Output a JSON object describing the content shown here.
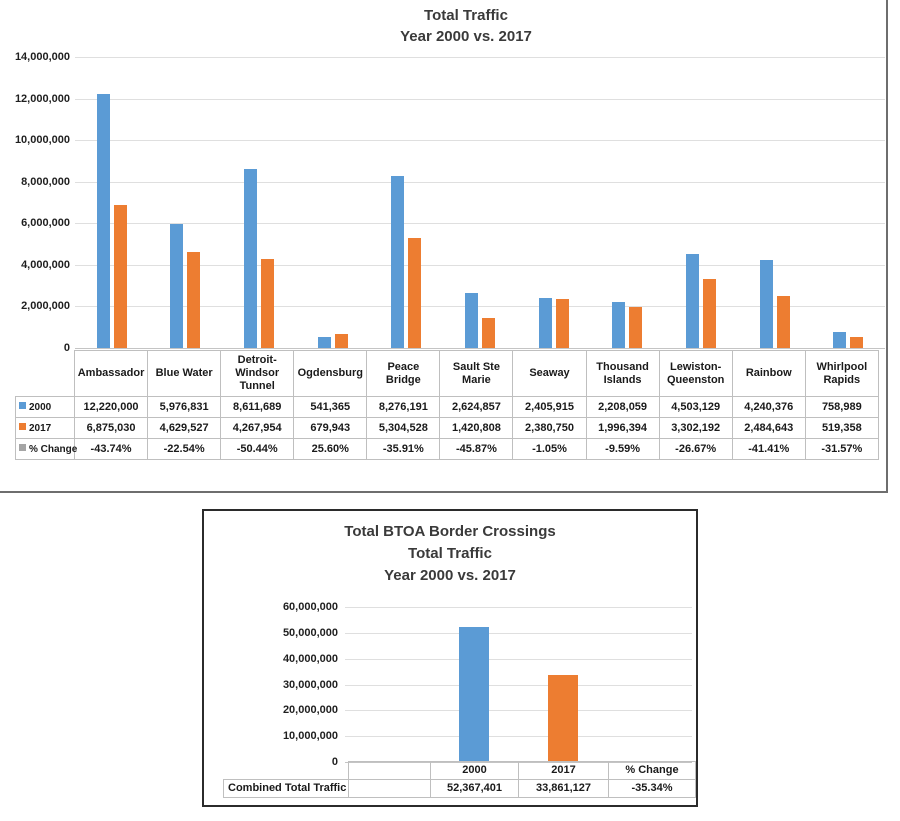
{
  "page": {
    "background": "#ffffff"
  },
  "chart_data": [
    {
      "type": "bar",
      "title": [
        "Total Traffic",
        "Year 2000 vs. 2017"
      ],
      "categories": [
        "Ambassador",
        "Blue Water",
        "Detroit-Windsor Tunnel",
        "Ogdensburg",
        "Peace Bridge",
        "Sault Ste Marie",
        "Seaway",
        "Thousand Islands",
        "Lewiston-Queenston",
        "Rainbow",
        "Whirlpool Rapids"
      ],
      "series": [
        {
          "name": "2000",
          "color": "#5B9BD5",
          "in_plot": true,
          "values": [
            12220000,
            5976831,
            8611689,
            541365,
            8276191,
            2624857,
            2405915,
            2208059,
            4503129,
            4240376,
            758989
          ],
          "labels": [
            "12,220,000",
            "5,976,831",
            "8,611,689",
            "541,365",
            "8,276,191",
            "2,624,857",
            "2,405,915",
            "2,208,059",
            "4,503,129",
            "4,240,376",
            "758,989"
          ]
        },
        {
          "name": "2017",
          "color": "#ED7D31",
          "in_plot": true,
          "values": [
            6875030,
            4629527,
            4267954,
            679943,
            5304528,
            1420808,
            2380750,
            1996394,
            3302192,
            2484643,
            519358
          ],
          "labels": [
            "6,875,030",
            "4,629,527",
            "4,267,954",
            "679,943",
            "5,304,528",
            "1,420,808",
            "2,380,750",
            "1,996,394",
            "3,302,192",
            "2,484,643",
            "519,358"
          ]
        },
        {
          "name": "% Change",
          "color": "#A5A5A5",
          "in_plot": false,
          "values": [
            -43.74,
            -22.54,
            -50.44,
            25.6,
            -35.91,
            -45.87,
            -1.05,
            -9.59,
            -26.67,
            -41.41,
            -31.57
          ],
          "labels": [
            "-43.74%",
            "-22.54%",
            "-50.44%",
            "25.60%",
            "-35.91%",
            "-45.87%",
            "-1.05%",
            "-9.59%",
            "-26.67%",
            "-41.41%",
            "-31.57%"
          ]
        }
      ],
      "ylim": [
        0,
        14000000
      ],
      "ytick_labels": [
        "14,000,000",
        "12,000,000",
        "10,000,000",
        "8,000,000",
        "6,000,000",
        "4,000,000",
        "2,000,000",
        "0"
      ],
      "grid": true,
      "legend_position": "data-table-row-headers",
      "data_table": true
    },
    {
      "type": "bar",
      "title": [
        "Total BTOA Border Crossings",
        "Total Traffic",
        "Year 2000 vs. 2017"
      ],
      "categories": [
        "2000",
        "2017",
        "% Change"
      ],
      "bar_colors": [
        "#5B9BD5",
        "#ED7D31"
      ],
      "values": [
        52367401,
        33861127
      ],
      "table_row_label": "Combined Total Traffic",
      "table_values": [
        "52,367,401",
        "33,861,127",
        "-35.34%"
      ],
      "ylim": [
        0,
        60000000
      ],
      "ytick_labels": [
        "60,000,000",
        "50,000,000",
        "40,000,000",
        "30,000,000",
        "20,000,000",
        "10,000,000",
        "0"
      ],
      "grid": true,
      "data_table": true
    }
  ]
}
